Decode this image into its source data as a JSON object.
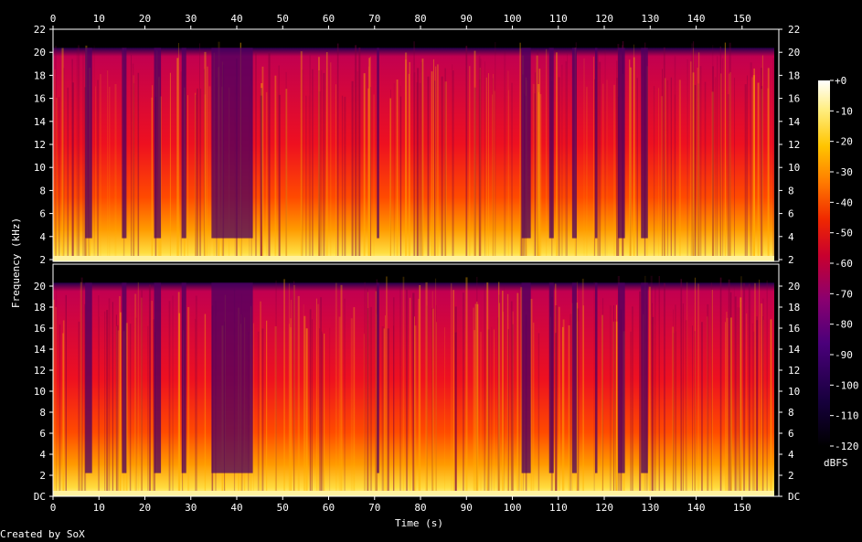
{
  "chart_data": {
    "type": "heatmap",
    "title": "",
    "xlabel": "Time (s)",
    "ylabel": "Frequency (kHz)",
    "colorbar_label": "dBFS",
    "x_ticks": [
      "0",
      "10",
      "20",
      "30",
      "40",
      "50",
      "60",
      "70",
      "80",
      "90",
      "100",
      "110",
      "120",
      "130",
      "140",
      "150"
    ],
    "xlim": [
      0,
      158
    ],
    "channels": [
      {
        "name": "",
        "y_ticks_left": [
          "22",
          "20",
          "18",
          "16",
          "14",
          "12",
          "10",
          "8",
          "6",
          "4",
          "2"
        ],
        "y_ticks_right": [
          "22",
          "20",
          "18",
          "16",
          "14",
          "12",
          "10",
          "8",
          "6",
          "4",
          "2"
        ],
        "ylim_khz": [
          0,
          22
        ]
      },
      {
        "name": "",
        "y_ticks_left": [
          "20",
          "18",
          "16",
          "14",
          "12",
          "10",
          "8",
          "6",
          "4",
          "2",
          "DC"
        ],
        "y_ticks_right": [
          "20",
          "18",
          "16",
          "14",
          "12",
          "10",
          "8",
          "6",
          "4",
          "2",
          "DC"
        ],
        "ylim_khz": [
          0,
          22
        ]
      }
    ],
    "colorbar_ticks": [
      "+0",
      "-10",
      "-20",
      "-30",
      "-40",
      "-50",
      "-60",
      "-70",
      "-80",
      "-90",
      "-100",
      "-110",
      "-120"
    ],
    "colorbar_range_dbfs": [
      -120,
      0
    ],
    "colormap": [
      "#000000",
      "#16003c",
      "#4a007a",
      "#8a0070",
      "#c8002e",
      "#f02800",
      "#ff7a00",
      "#ffc400",
      "#ffee80",
      "#ffffff"
    ],
    "signal_end_s": 157,
    "quiet_gaps_s": [
      [
        7,
        8.5
      ],
      [
        15,
        16
      ],
      [
        22,
        23.5
      ],
      [
        28,
        29
      ],
      [
        34.5,
        43.5
      ],
      [
        70.5,
        71
      ],
      [
        102,
        104
      ],
      [
        108,
        109
      ],
      [
        113,
        114
      ],
      [
        118,
        118.5
      ],
      [
        123,
        124.5
      ],
      [
        128,
        129.5
      ]
    ]
  },
  "footer": {
    "credit": "Created by SoX"
  }
}
